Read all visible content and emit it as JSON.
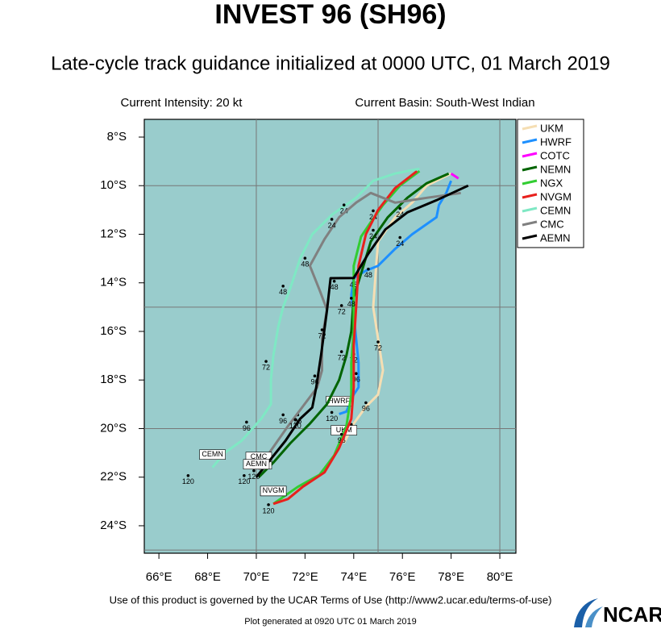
{
  "chart_data": {
    "type": "track",
    "title": "INVEST 96 (SH96)",
    "subtitle": "Late-cycle track guidance initialized at 0000 UTC, 01 March 2019",
    "intensity": "Current Intensity: 20 kt",
    "basin": "Current Basin: South-West Indian",
    "footer": "Use of this product is governed by the UCAR Terms of Use (http://www2.ucar.edu/terms-of-use)",
    "generated": "Plot generated at 0920 UTC   01 March 2019",
    "logo": "NCAR",
    "background": "#99cccc",
    "xlim": [
      65.4,
      80.66
    ],
    "ylim": [
      -25.13,
      -7.27
    ],
    "xticks": [
      {
        "value": 66,
        "label": "66°E"
      },
      {
        "value": 68,
        "label": "68°E"
      },
      {
        "value": 70,
        "label": "70°E"
      },
      {
        "value": 72,
        "label": "72°E"
      },
      {
        "value": 74,
        "label": "74°E"
      },
      {
        "value": 76,
        "label": "76°E"
      },
      {
        "value": 78,
        "label": "78°E"
      },
      {
        "value": 80,
        "label": "80°E"
      }
    ],
    "yticks": [
      {
        "value": -8,
        "label": "8°S"
      },
      {
        "value": -10,
        "label": "10°S"
      },
      {
        "value": -12,
        "label": "12°S"
      },
      {
        "value": -14,
        "label": "14°S"
      },
      {
        "value": -16,
        "label": "16°S"
      },
      {
        "value": -18,
        "label": "18°S"
      },
      {
        "value": -20,
        "label": "20°S"
      },
      {
        "value": -22,
        "label": "22°S"
      },
      {
        "value": -24,
        "label": "24°S"
      }
    ],
    "grid_x": [
      70,
      75,
      80
    ],
    "grid_y": [
      -10,
      -15,
      -20,
      -25
    ],
    "legend": "upper right",
    "series": [
      {
        "name": "UKM",
        "color": "#f5deb3",
        "x": [
          78.0,
          77.0,
          76.4,
          75.7,
          75.0,
          74.9,
          74.8,
          75.0,
          75.2,
          75.0,
          74.5,
          74.0,
          73.6
        ],
        "y": [
          -9.5,
          -10.0,
          -10.7,
          -11.3,
          -12.3,
          -13.6,
          -15.0,
          -16.3,
          -17.6,
          -18.6,
          -19.1,
          -19.8,
          -20.6
        ],
        "tau_labels": [
          {
            "text": 24,
            "x": 75.9,
            "y": -11.2
          },
          {
            "text": 72,
            "x": 75.0,
            "y": -16.7
          },
          {
            "text": 96,
            "x": 74.5,
            "y": -19.2
          },
          {
            "text": 120,
            "x": 73.9,
            "y": -20.1
          }
        ]
      },
      {
        "name": "HWRF",
        "color": "#1e90ff",
        "x": [
          78.0,
          77.8,
          77.5,
          77.4,
          76.4,
          75.7,
          75.0,
          74.5,
          74.0,
          73.9,
          74.0,
          74.1,
          74.2,
          74.2,
          74.0,
          73.7,
          73.4
        ],
        "y": [
          -9.8,
          -10.3,
          -10.8,
          -11.3,
          -12.0,
          -12.6,
          -13.3,
          -13.5,
          -13.8,
          -14.5,
          -15.3,
          -16.3,
          -17.3,
          -18.3,
          -18.6,
          -19.3,
          -19.4
        ],
        "tau_labels": [
          {
            "text": 24,
            "x": 75.9,
            "y": -12.4
          },
          {
            "text": 48,
            "x": 74.6,
            "y": -13.7
          },
          {
            "text": 72,
            "x": 74.0,
            "y": -17.2
          },
          {
            "text": 96,
            "x": 74.1,
            "y": -18.0
          },
          {
            "text": 120,
            "x": 73.1,
            "y": -19.6
          }
        ]
      },
      {
        "name": "COTC",
        "color": "#ff00ff",
        "x": [
          78.0,
          78.3
        ],
        "y": [
          -9.5,
          -9.7
        ],
        "tau_labels": []
      },
      {
        "name": "NEMN",
        "color": "#006400",
        "x": [
          77.9,
          77.0,
          76.2,
          75.4,
          74.7,
          74.4,
          74.0,
          73.9,
          73.7,
          73.4,
          72.9,
          72.2,
          71.4,
          70.7,
          70.1
        ],
        "y": [
          -9.5,
          -9.9,
          -10.5,
          -11.3,
          -12.3,
          -13.3,
          -14.6,
          -16.0,
          -17.0,
          -18.0,
          -19.0,
          -19.8,
          -20.6,
          -21.4,
          -22.0
        ],
        "tau_labels": [
          {
            "text": 24,
            "x": 74.8,
            "y": -12.1
          },
          {
            "text": 48,
            "x": 74.0,
            "y": -14.1
          },
          {
            "text": 72,
            "x": 73.5,
            "y": -17.1
          },
          {
            "text": 96,
            "x": 71.7,
            "y": -19.7
          },
          {
            "text": 120,
            "x": 69.9,
            "y": -22.0
          }
        ]
      },
      {
        "name": "NGX",
        "color": "#32cd32",
        "x": [
          76.7,
          75.9,
          75.2,
          74.7,
          74.3,
          74.0,
          74.0,
          74.0,
          73.9,
          73.9,
          73.7,
          73.2,
          72.6,
          71.7,
          70.7
        ],
        "y": [
          -9.4,
          -10.0,
          -10.8,
          -11.5,
          -12.1,
          -13.3,
          -14.6,
          -15.9,
          -17.3,
          -18.6,
          -19.9,
          -21.1,
          -21.9,
          -22.4,
          -23.1
        ],
        "tau_labels": [
          {
            "text": 24,
            "x": 74.8,
            "y": -11.3
          },
          {
            "text": 96,
            "x": 73.5,
            "y": -20.5
          }
        ]
      },
      {
        "name": "NVGM",
        "color": "#e8211d",
        "x": [
          76.6,
          75.7,
          75.0,
          74.5,
          74.2,
          74.1,
          74.0,
          74.0,
          73.9,
          73.4,
          72.8,
          71.9,
          71.3,
          70.7
        ],
        "y": [
          -9.4,
          -10.1,
          -11.0,
          -12.0,
          -13.3,
          -15.0,
          -16.6,
          -18.3,
          -19.6,
          -20.8,
          -21.8,
          -22.4,
          -22.9,
          -23.1
        ],
        "tau_labels": [
          {
            "text": 48,
            "x": 73.9,
            "y": -14.9
          },
          {
            "text": 120,
            "x": 70.5,
            "y": -23.4
          }
        ]
      },
      {
        "name": "CEMN",
        "color": "#7fe8c4",
        "x": [
          76.7,
          75.7,
          74.8,
          74.1,
          73.1,
          72.3,
          71.8,
          71.4,
          71.1,
          70.9,
          70.7,
          70.6,
          70.6,
          70.2,
          69.4,
          68.7,
          68.2
        ],
        "y": [
          -9.3,
          -9.5,
          -9.8,
          -10.5,
          -11.2,
          -12.0,
          -13.0,
          -14.2,
          -15.0,
          -15.8,
          -17.0,
          -18.0,
          -19.0,
          -19.6,
          -20.5,
          -21.0,
          -21.6
        ],
        "tau_labels": [
          {
            "text": 24,
            "x": 73.6,
            "y": -11.06
          },
          {
            "text": 48,
            "x": 71.1,
            "y": -14.4
          },
          {
            "text": 72,
            "x": 70.4,
            "y": -17.5
          },
          {
            "text": 96,
            "x": 69.6,
            "y": -20.0
          },
          {
            "text": 120,
            "x": 67.2,
            "y": -22.2
          }
        ]
      },
      {
        "name": "CMC",
        "color": "#808080",
        "x": [
          78.4,
          77.0,
          75.7,
          74.7,
          74.1,
          73.4,
          72.8,
          72.2,
          72.6,
          72.9,
          72.7,
          72.7,
          72.5,
          71.9,
          71.3,
          70.6,
          70.1
        ],
        "y": [
          -10.3,
          -10.5,
          -10.7,
          -10.3,
          -10.7,
          -11.3,
          -12.2,
          -13.3,
          -14.3,
          -15.1,
          -16.3,
          -17.6,
          -18.3,
          -19.1,
          -19.9,
          -20.9,
          -21.7
        ],
        "tau_labels": [
          {
            "text": 24,
            "x": 73.1,
            "y": -11.65
          },
          {
            "text": 48,
            "x": 72.0,
            "y": -13.25
          },
          {
            "text": 72,
            "x": 73.5,
            "y": -15.2
          },
          {
            "text": 96,
            "x": 71.1,
            "y": -19.7
          },
          {
            "text": 120,
            "x": 69.5,
            "y": -22.2
          }
        ]
      },
      {
        "name": "AEMN",
        "color": "#000000",
        "x": [
          78.7,
          77.4,
          76.2,
          75.3,
          74.6,
          74.0,
          73.05,
          72.9,
          72.66,
          72.46,
          72.3,
          71.8,
          71.2,
          70.4,
          70.0
        ],
        "y": [
          -10.0,
          -10.6,
          -11.1,
          -11.8,
          -12.8,
          -13.8,
          -13.81,
          -15.14,
          -16.97,
          -18.3,
          -19.13,
          -19.6,
          -20.5,
          -21.5,
          -22.0
        ],
        "tau_labels": [
          {
            "text": 48,
            "x": 73.2,
            "y": -14.2
          },
          {
            "text": 72,
            "x": 72.7,
            "y": -16.2
          },
          {
            "text": 96,
            "x": 72.4,
            "y": -18.1
          },
          {
            "text": 120,
            "x": 71.6,
            "y": -19.9
          }
        ]
      }
    ]
  }
}
